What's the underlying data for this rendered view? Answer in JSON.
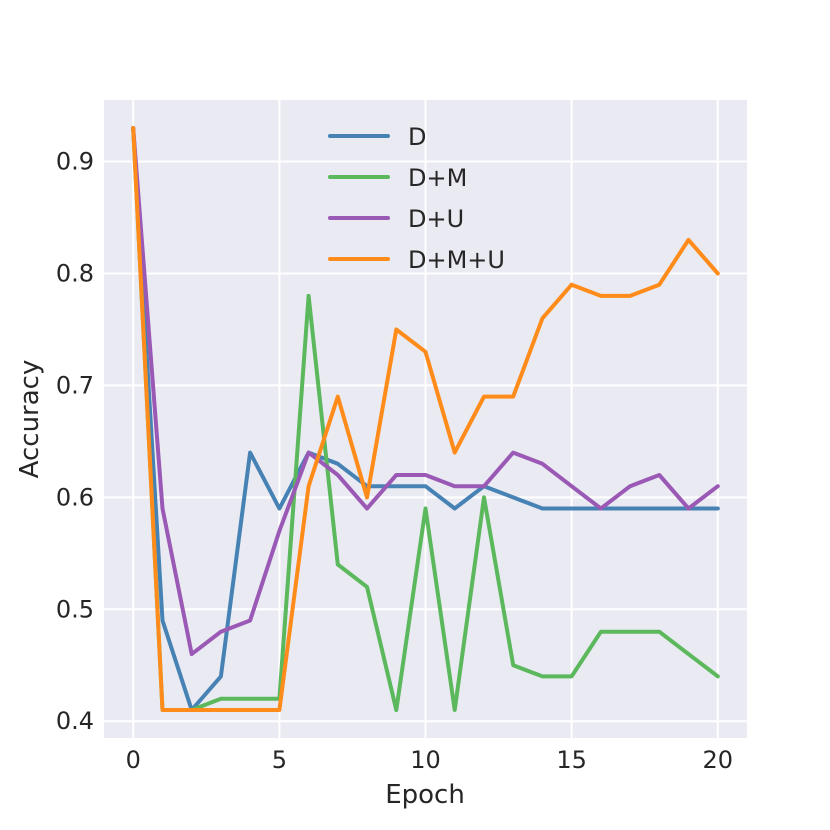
{
  "chart_data": {
    "type": "line",
    "title": "",
    "xlabel": "Epoch",
    "ylabel": "Accuracy",
    "xlim": [
      -1,
      21
    ],
    "ylim": [
      0.385,
      0.955
    ],
    "xticks": [
      0,
      5,
      10,
      15,
      20
    ],
    "yticks": [
      0.4,
      0.5,
      0.6,
      0.7,
      0.8,
      0.9
    ],
    "xtick_labels": [
      "0",
      "5",
      "10",
      "15",
      "20"
    ],
    "ytick_labels": [
      "0.4",
      "0.5",
      "0.6",
      "0.7",
      "0.8",
      "0.9"
    ],
    "grid": true,
    "legend_position": "top-center",
    "x": [
      0,
      1,
      2,
      3,
      4,
      5,
      6,
      7,
      8,
      9,
      10,
      11,
      12,
      13,
      14,
      15,
      16,
      17,
      18,
      19,
      20
    ],
    "series": [
      {
        "name": "D",
        "color": "#4682b4",
        "values": [
          0.93,
          0.49,
          0.41,
          0.44,
          0.64,
          0.59,
          0.64,
          0.63,
          0.61,
          0.61,
          0.61,
          0.59,
          0.61,
          0.6,
          0.59,
          0.59,
          0.59,
          0.59,
          0.59,
          0.59,
          0.59
        ]
      },
      {
        "name": "D+M",
        "color": "#5cb85c",
        "values": [
          0.93,
          0.41,
          0.41,
          0.42,
          0.42,
          0.42,
          0.78,
          0.54,
          0.52,
          0.41,
          0.59,
          0.41,
          0.6,
          0.45,
          0.44,
          0.44,
          0.48,
          0.48,
          0.48,
          0.46,
          0.44
        ]
      },
      {
        "name": "D+U",
        "color": "#9b59b6",
        "values": [
          0.93,
          0.59,
          0.46,
          0.48,
          0.49,
          0.57,
          0.64,
          0.62,
          0.59,
          0.62,
          0.62,
          0.61,
          0.61,
          0.64,
          0.63,
          0.61,
          0.59,
          0.61,
          0.62,
          0.59,
          0.61
        ]
      },
      {
        "name": "D+M+U",
        "color": "#ff8c1a",
        "values": [
          0.93,
          0.41,
          0.41,
          0.41,
          0.41,
          0.41,
          0.61,
          0.69,
          0.6,
          0.75,
          0.73,
          0.64,
          0.69,
          0.69,
          0.76,
          0.79,
          0.78,
          0.78,
          0.79,
          0.83,
          0.8
        ]
      }
    ]
  }
}
